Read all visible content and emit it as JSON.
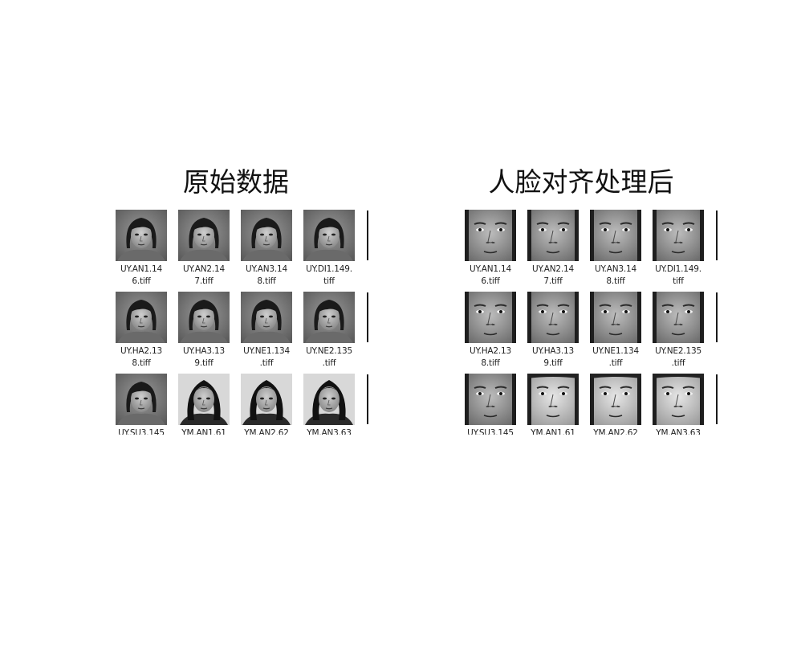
{
  "panels": [
    {
      "title": "原始数据",
      "variant": "raw",
      "files": [
        [
          "UY.AN1.14",
          "6.tiff"
        ],
        [
          "UY.AN2.14",
          "7.tiff"
        ],
        [
          "UY.AN3.14",
          "8.tiff"
        ],
        [
          "UY.DI1.149.",
          "tiff"
        ],
        [
          "UY.HA2.13",
          "8.tiff"
        ],
        [
          "UY.HA3.13",
          "9.tiff"
        ],
        [
          "UY.NE1.134",
          ".tiff"
        ],
        [
          "UY.NE2.135",
          ".tiff"
        ],
        [
          "UY.SU3.145",
          ""
        ],
        [
          "YM.AN1.61",
          ""
        ],
        [
          "YM.AN2.62",
          ""
        ],
        [
          "YM.AN3.63",
          ""
        ]
      ]
    },
    {
      "title": "人脸对齐处理后",
      "variant": "aligned",
      "files": [
        [
          "UY.AN1.14",
          "6.tiff"
        ],
        [
          "UY.AN2.14",
          "7.tiff"
        ],
        [
          "UY.AN3.14",
          "8.tiff"
        ],
        [
          "UY.DI1.149.",
          "tiff"
        ],
        [
          "UY.HA2.13",
          "8.tiff"
        ],
        [
          "UY.HA3.13",
          "9.tiff"
        ],
        [
          "UY.NE1.134",
          ".tiff"
        ],
        [
          "UY.NE2.135",
          ".tiff"
        ],
        [
          "UY.SU3.145",
          ""
        ],
        [
          "YM.AN1.61",
          ""
        ],
        [
          "YM.AN2.62",
          ""
        ],
        [
          "YM.AN3.63",
          ""
        ]
      ]
    }
  ]
}
